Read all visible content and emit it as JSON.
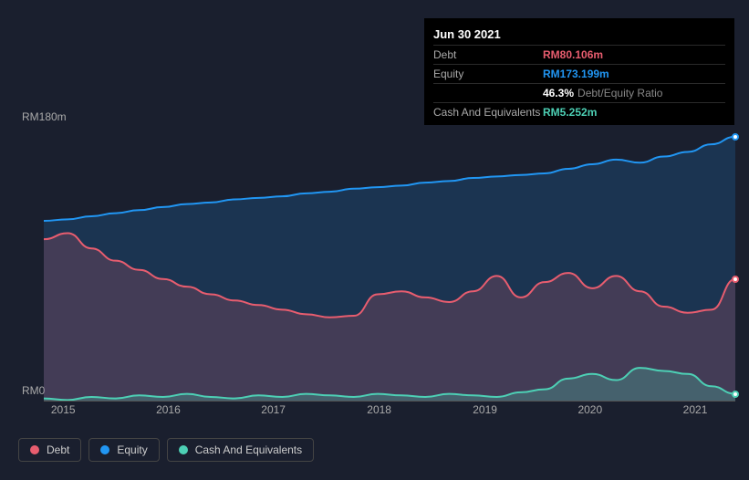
{
  "chart": {
    "type": "area",
    "background_color": "#1a1f2e",
    "plot_background": "#151a27",
    "grid_color": "#2a3040",
    "ylim": [
      0,
      180
    ],
    "y_ticks": [
      {
        "value": 180,
        "label": "RM180m"
      },
      {
        "value": 0,
        "label": "RM0"
      }
    ],
    "x_labels": [
      "2015",
      "2016",
      "2017",
      "2018",
      "2019",
      "2020",
      "2021"
    ],
    "x_tick_positions": [
      0.028,
      0.18,
      0.332,
      0.485,
      0.638,
      0.79,
      0.942
    ],
    "series": {
      "equity": {
        "label": "Equity",
        "color": "#2196f3",
        "fill": "rgba(33,150,243,0.18)",
        "values": [
          118,
          119,
          121,
          123,
          125,
          127,
          129,
          130,
          132,
          133,
          134,
          136,
          137,
          139,
          140,
          141,
          143,
          144,
          146,
          147,
          148,
          149,
          152,
          155,
          158,
          156,
          160,
          163,
          168,
          173
        ]
      },
      "debt": {
        "label": "Debt",
        "color": "#e85d6f",
        "fill": "rgba(232,93,111,0.20)",
        "values": [
          106,
          110,
          100,
          92,
          86,
          80,
          75,
          70,
          66,
          63,
          60,
          57,
          55,
          56,
          70,
          72,
          68,
          65,
          72,
          82,
          68,
          78,
          84,
          74,
          82,
          72,
          62,
          58,
          60,
          80
        ]
      },
      "cash": {
        "label": "Cash And Equivalents",
        "color": "#4dd0b5",
        "fill": "rgba(77,208,181,0.25)",
        "values": [
          2,
          1,
          3,
          2,
          4,
          3,
          5,
          3,
          2,
          4,
          3,
          5,
          4,
          3,
          5,
          4,
          3,
          5,
          4,
          3,
          6,
          8,
          15,
          18,
          14,
          22,
          20,
          18,
          10,
          5
        ]
      }
    },
    "end_markers": [
      {
        "series": "equity",
        "color": "#2196f3"
      },
      {
        "series": "debt",
        "color": "#e85d6f"
      },
      {
        "series": "cash",
        "color": "#4dd0b5"
      }
    ]
  },
  "tooltip": {
    "date": "Jun 30 2021",
    "rows": [
      {
        "label": "Debt",
        "value": "RM80.106m",
        "color": "#e85d6f"
      },
      {
        "label": "Equity",
        "value": "RM173.199m",
        "color": "#2196f3"
      },
      {
        "label": "",
        "value": "46.3%",
        "color": "#ffffff",
        "extra": "Debt/Equity Ratio"
      },
      {
        "label": "Cash And Equivalents",
        "value": "RM5.252m",
        "color": "#4dd0b5"
      }
    ]
  },
  "legend": [
    {
      "label": "Debt",
      "color": "#e85d6f"
    },
    {
      "label": "Equity",
      "color": "#2196f3"
    },
    {
      "label": "Cash And Equivalents",
      "color": "#4dd0b5"
    }
  ]
}
